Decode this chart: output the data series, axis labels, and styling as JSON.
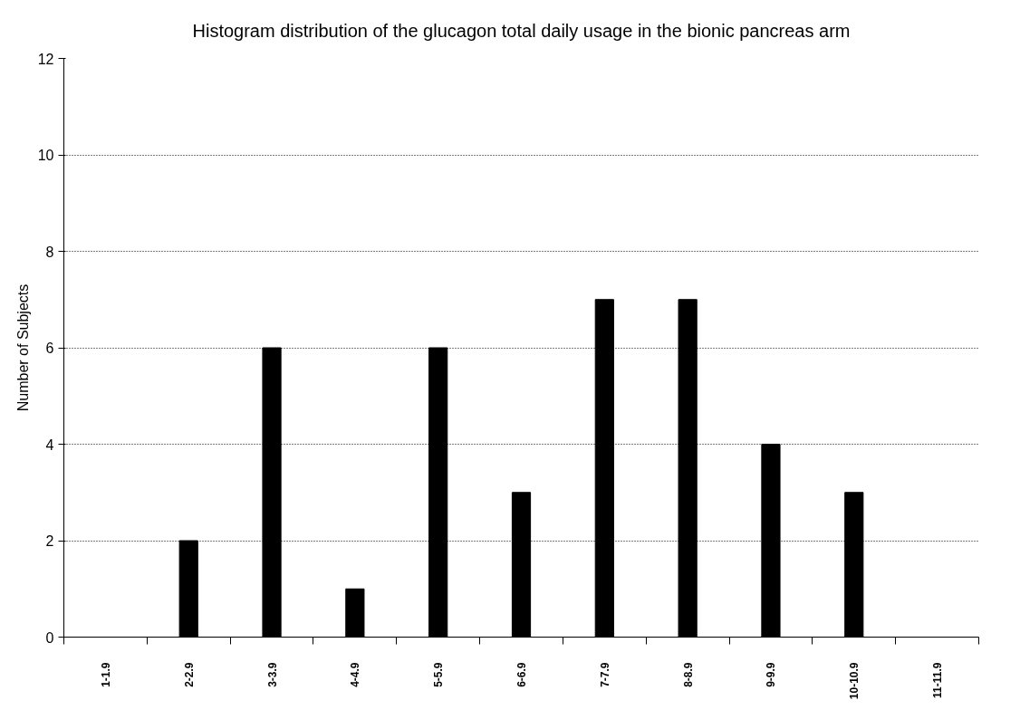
{
  "chart_data": {
    "type": "bar",
    "title": "Histogram distribution of the glucagon total daily usage in the bionic pancreas arm",
    "ylabel": "Number of Subjects",
    "categories": [
      "1-1.9",
      "2-2.9",
      "3-3.9",
      "4-4.9",
      "5-5.9",
      "6-6.9",
      "7-7.9",
      "8-8.9",
      "9-9.9",
      "10-10.9",
      "11-11.9"
    ],
    "values": [
      0,
      2,
      6,
      1,
      6,
      3,
      7,
      7,
      4,
      3,
      0
    ],
    "color": "#000000",
    "ylim": [
      0,
      12
    ],
    "yticks": [
      0,
      2,
      4,
      6,
      8,
      10,
      12
    ],
    "grid": "y"
  }
}
